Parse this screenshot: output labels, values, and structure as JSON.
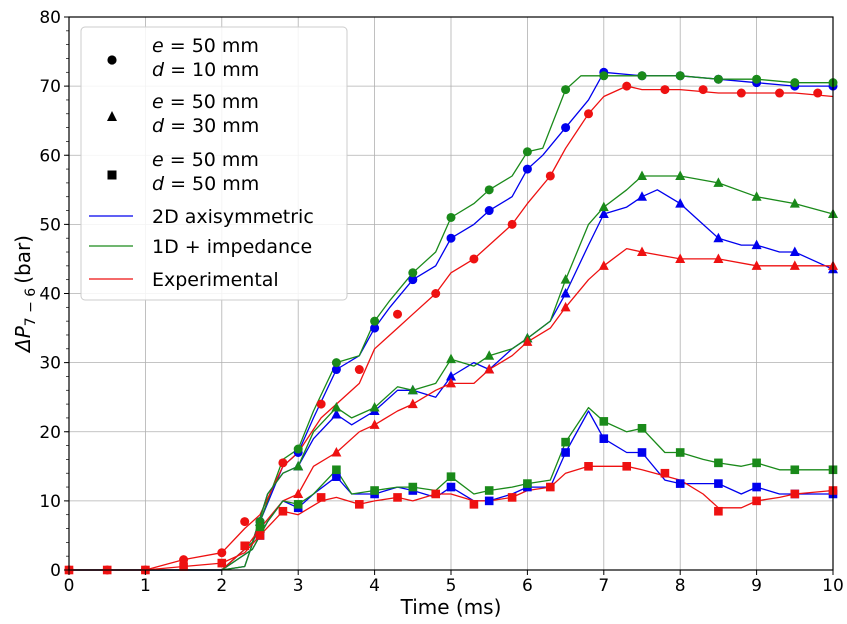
{
  "chart_data": {
    "type": "line",
    "xlabel": "Time (ms)",
    "ylabel": "ΔP",
    "ylabel_sub": "7 − 6",
    "ylabel_unit": "(bar)",
    "xlim": [
      0,
      10
    ],
    "ylim": [
      0,
      80
    ],
    "xticks": [
      0,
      1,
      2,
      3,
      4,
      5,
      6,
      7,
      8,
      9,
      10
    ],
    "yticks": [
      0,
      10,
      20,
      30,
      40,
      50,
      60,
      70,
      80
    ],
    "grid": true,
    "legend_position": "top-left",
    "legend": [
      {
        "marker": "circle",
        "line1_var": "e",
        "line1_val": " = 50 mm",
        "line2_var": "d",
        "line2_val": " = 10 mm"
      },
      {
        "marker": "triangle",
        "line1_var": "e",
        "line1_val": " = 50 mm",
        "line2_var": "d",
        "line2_val": " = 30 mm"
      },
      {
        "marker": "square",
        "line1_var": "e",
        "line1_val": " = 50 mm",
        "line2_var": "d",
        "line2_val": " = 50 mm"
      },
      {
        "line_color": "#0000ee",
        "label": "2D axisymmetric"
      },
      {
        "line_color": "#1a8a1a",
        "label": "1D + impedance"
      },
      {
        "line_color": "#ee1111",
        "label": "Experimental"
      }
    ],
    "colors": {
      "2D axisymmetric": "#0000ee",
      "1D + impedance": "#1a8a1a",
      "Experimental": "#ee1111"
    },
    "series": [
      {
        "name": "2D axisymmetric",
        "case": "d = 10 mm",
        "marker": "circle",
        "x": [
          0,
          1,
          2,
          2.3,
          2.5,
          2.8,
          3,
          3.2,
          3.5,
          3.8,
          4,
          4.2,
          4.5,
          4.8,
          5,
          5.3,
          5.5,
          5.8,
          6,
          6.2,
          6.5,
          6.8,
          7,
          7.5,
          8,
          8.5,
          9,
          9.5,
          10
        ],
        "y": [
          0,
          0,
          0,
          0.5,
          7,
          15,
          17,
          22,
          29,
          31,
          35,
          38,
          42,
          44,
          48,
          50,
          52,
          54,
          58,
          60,
          64,
          68,
          72,
          71.5,
          71.5,
          71,
          70.5,
          70,
          70
        ],
        "marker_x": [
          2.5,
          3,
          3.5,
          4,
          4.5,
          5,
          5.5,
          6,
          6.5,
          7,
          7.5,
          8,
          8.5,
          9,
          9.5,
          10
        ],
        "marker_y": [
          7,
          17,
          29,
          35,
          42,
          48,
          52,
          58,
          64,
          72,
          71.5,
          71.5,
          71,
          70.5,
          70,
          70
        ]
      },
      {
        "name": "1D + impedance",
        "case": "d = 10 mm",
        "marker": "circle",
        "x": [
          0,
          1,
          2,
          2.3,
          2.5,
          2.8,
          3,
          3.2,
          3.5,
          3.8,
          4,
          4.2,
          4.5,
          4.8,
          5,
          5.3,
          5.5,
          5.8,
          6,
          6.2,
          6.5,
          6.7,
          7,
          7.5,
          8,
          8.5,
          9,
          9.5,
          10
        ],
        "y": [
          0,
          0,
          0,
          0.5,
          7,
          16,
          17.5,
          23,
          30,
          31,
          36,
          39,
          43,
          46,
          51,
          53,
          55,
          57,
          60.5,
          61,
          69.5,
          71.5,
          71.5,
          71.5,
          71.5,
          71,
          71,
          70.5,
          70.5
        ],
        "marker_x": [
          2.5,
          3,
          3.5,
          4,
          4.5,
          5,
          5.5,
          6,
          6.5,
          7,
          7.5,
          8,
          8.5,
          9,
          9.5,
          10
        ],
        "marker_y": [
          7,
          17.5,
          30,
          36,
          43,
          51,
          55,
          60.5,
          69.5,
          71.5,
          71.5,
          71.5,
          71,
          71,
          70.5,
          70.5
        ]
      },
      {
        "name": "Experimental",
        "case": "d = 10 mm",
        "marker": "circle",
        "x": [
          0,
          1,
          1.5,
          2,
          2.3,
          2.5,
          2.8,
          3,
          3.3,
          3.5,
          3.8,
          4,
          4.3,
          4.5,
          4.8,
          5,
          5.3,
          5.5,
          5.8,
          6,
          6.3,
          6.5,
          6.8,
          7,
          7.3,
          7.5,
          8,
          8.5,
          9,
          9.5,
          10
        ],
        "y": [
          0,
          0,
          1.5,
          2.5,
          6,
          8,
          15,
          17,
          22,
          24,
          27,
          32,
          35,
          37,
          40,
          43,
          45,
          47,
          50,
          53,
          57,
          61,
          66,
          68.5,
          70,
          69.5,
          69.5,
          69,
          69,
          69,
          68.5
        ],
        "marker_x": [
          0,
          0.5,
          1,
          1.5,
          2,
          2.3,
          2.8,
          3.3,
          3.8,
          4.3,
          4.8,
          5.3,
          5.8,
          6.3,
          6.8,
          7.3,
          7.8,
          8.3,
          8.8,
          9.3,
          9.8
        ],
        "marker_y": [
          0,
          0,
          0,
          1.5,
          2.5,
          7,
          15.5,
          24,
          29,
          37,
          40,
          45,
          50,
          57,
          66,
          70,
          69.5,
          69.5,
          69,
          69,
          69
        ]
      },
      {
        "name": "2D axisymmetric",
        "case": "d = 30 mm",
        "marker": "triangle",
        "x": [
          0,
          2,
          2.4,
          2.6,
          2.8,
          3,
          3.2,
          3.5,
          3.7,
          4,
          4.3,
          4.5,
          4.8,
          5,
          5.3,
          5.5,
          5.8,
          6,
          6.3,
          6.5,
          6.8,
          7,
          7.3,
          7.5,
          7.7,
          8,
          8.3,
          8.5,
          8.8,
          9,
          9.3,
          9.5,
          10
        ],
        "y": [
          0,
          0,
          4,
          11,
          14,
          15,
          19,
          22.5,
          21,
          23,
          26,
          26,
          25,
          28,
          30,
          29,
          32,
          33.5,
          36,
          40,
          47,
          51.5,
          52.5,
          54,
          55,
          53,
          50,
          48,
          47,
          47,
          46,
          46,
          43.5
        ],
        "marker_x": [
          2.5,
          3,
          3.5,
          4,
          4.5,
          5,
          5.5,
          6,
          6.5,
          7,
          7.5,
          8,
          8.5,
          9,
          9.5,
          10
        ],
        "marker_y": [
          7,
          15,
          22.5,
          23,
          26,
          28,
          29,
          33.5,
          40,
          51.5,
          54,
          53,
          48,
          47,
          46,
          43.5
        ]
      },
      {
        "name": "1D + impedance",
        "case": "d = 30 mm",
        "marker": "triangle",
        "x": [
          0,
          2,
          2.4,
          2.6,
          2.8,
          3,
          3.2,
          3.5,
          3.7,
          4,
          4.3,
          4.5,
          4.8,
          5,
          5.3,
          5.5,
          5.8,
          6,
          6.3,
          6.5,
          6.8,
          7,
          7.3,
          7.5,
          8,
          8.5,
          9,
          9.5,
          10
        ],
        "y": [
          0,
          0,
          4,
          11,
          14,
          15,
          20,
          23.5,
          22,
          23.5,
          26.5,
          26,
          27,
          30.5,
          29.5,
          31,
          32,
          33.5,
          36,
          42,
          50,
          52.5,
          55,
          57,
          57,
          56,
          54,
          53,
          51.5
        ],
        "marker_x": [
          2.5,
          3,
          3.5,
          4,
          4.5,
          5,
          5.5,
          6,
          6.5,
          7,
          7.5,
          8,
          8.5,
          9,
          9.5,
          10
        ],
        "marker_y": [
          7,
          15,
          23.5,
          23.5,
          26,
          30.5,
          31,
          33.5,
          42,
          52.5,
          57,
          57,
          56,
          54,
          53,
          51.5
        ]
      },
      {
        "name": "Experimental",
        "case": "d = 30 mm",
        "marker": "triangle",
        "x": [
          0,
          2,
          2.3,
          2.5,
          2.8,
          3,
          3.2,
          3.5,
          3.8,
          4,
          4.3,
          4.5,
          4.8,
          5,
          5.3,
          5.5,
          5.8,
          6,
          6.3,
          6.5,
          6.8,
          7,
          7.3,
          7.5,
          8,
          8.5,
          9,
          9.5,
          10
        ],
        "y": [
          0,
          0,
          3,
          6,
          10,
          11,
          15,
          17,
          20,
          21,
          23,
          24,
          26,
          27,
          27,
          29,
          31,
          33,
          35,
          38,
          42,
          44,
          46.5,
          46,
          45,
          45,
          44,
          44,
          44
        ],
        "marker_x": [
          2.5,
          3,
          3.5,
          4,
          4.5,
          5,
          5.5,
          6,
          6.5,
          7,
          7.5,
          8,
          8.5,
          9,
          9.5,
          10
        ],
        "marker_y": [
          6,
          11,
          17,
          21,
          24,
          27,
          29,
          33,
          38,
          44,
          46,
          45,
          45,
          44,
          44,
          44
        ]
      },
      {
        "name": "2D axisymmetric",
        "case": "d = 50 mm",
        "marker": "square",
        "x": [
          0,
          2,
          2.4,
          2.6,
          2.8,
          3,
          3.2,
          3.5,
          3.7,
          4,
          4.3,
          4.5,
          4.8,
          5,
          5.3,
          5.5,
          5.8,
          6,
          6.3,
          6.5,
          6.8,
          7,
          7.3,
          7.5,
          7.8,
          8,
          8.3,
          8.5,
          8.8,
          9,
          9.3,
          9.5,
          10
        ],
        "y": [
          0,
          0,
          3,
          7,
          10,
          9,
          11,
          13.5,
          11,
          11,
          12,
          11.5,
          10.5,
          12,
          10,
          10,
          11,
          12,
          12,
          17,
          23,
          19,
          17,
          17,
          13,
          12.5,
          12.5,
          12.5,
          11,
          12,
          11,
          11,
          11
        ],
        "marker_x": [
          2.5,
          3,
          3.5,
          4,
          4.5,
          5,
          5.5,
          6,
          6.5,
          7,
          7.5,
          8,
          8.5,
          9,
          9.5,
          10
        ],
        "marker_y": [
          5,
          9,
          13.5,
          11,
          11.5,
          12,
          10,
          12,
          17,
          19,
          17,
          12.5,
          12.5,
          12,
          11,
          11
        ]
      },
      {
        "name": "1D + impedance",
        "case": "d = 50 mm",
        "marker": "square",
        "x": [
          0,
          2,
          2.4,
          2.6,
          2.8,
          3,
          3.2,
          3.5,
          3.7,
          4,
          4.3,
          4.5,
          4.8,
          5,
          5.3,
          5.5,
          5.8,
          6,
          6.3,
          6.5,
          6.8,
          7,
          7.3,
          7.5,
          7.8,
          8,
          8.3,
          8.5,
          8.8,
          9,
          9.3,
          9.5,
          10
        ],
        "y": [
          0,
          0,
          3,
          7,
          10,
          9.5,
          11,
          14.5,
          11,
          11.5,
          12,
          12,
          11.5,
          13.5,
          11,
          11.5,
          12,
          12.5,
          13,
          18.5,
          23.5,
          21.5,
          20,
          20.5,
          17,
          17,
          16,
          15.5,
          15,
          15.5,
          14.5,
          14.5,
          14.5
        ],
        "marker_x": [
          2.5,
          3,
          3.5,
          4,
          4.5,
          5,
          5.5,
          6,
          6.5,
          7,
          7.5,
          8,
          8.5,
          9,
          9.5,
          10
        ],
        "marker_y": [
          6,
          9.5,
          14.5,
          11.5,
          12,
          13.5,
          11.5,
          12.5,
          18.5,
          21.5,
          20.5,
          17,
          15.5,
          15.5,
          14.5,
          14.5
        ]
      },
      {
        "name": "Experimental",
        "case": "d = 50 mm",
        "marker": "square",
        "x": [
          0,
          1,
          1.5,
          2,
          2.3,
          2.5,
          2.8,
          3,
          3.3,
          3.5,
          3.8,
          4,
          4.3,
          4.5,
          4.8,
          5,
          5.3,
          5.5,
          5.8,
          6,
          6.3,
          6.5,
          6.8,
          7,
          7.3,
          7.5,
          8,
          8.3,
          8.5,
          8.8,
          9,
          9.3,
          9.5,
          10
        ],
        "y": [
          0,
          0,
          0.5,
          1,
          2.5,
          5,
          8.5,
          8,
          10,
          10.5,
          9.5,
          10,
          10.5,
          10,
          11,
          11,
          10,
          10,
          10.5,
          11.5,
          12,
          14,
          15,
          15,
          15,
          14.5,
          13,
          11,
          9,
          9,
          10,
          10.5,
          11,
          11.5
        ],
        "marker_x": [
          0,
          0.5,
          1,
          1.5,
          2,
          2.3,
          2.5,
          2.8,
          3.3,
          3.8,
          4.3,
          4.8,
          5.3,
          5.8,
          6.3,
          6.8,
          7.3,
          7.8,
          8.5,
          9,
          9.5,
          10
        ],
        "marker_y": [
          0,
          0,
          0,
          0.5,
          1,
          3.5,
          5,
          8.5,
          10.5,
          9.5,
          10.5,
          11,
          9.5,
          10.5,
          12,
          15,
          15,
          14,
          8.5,
          10,
          11,
          11.5
        ]
      }
    ]
  }
}
